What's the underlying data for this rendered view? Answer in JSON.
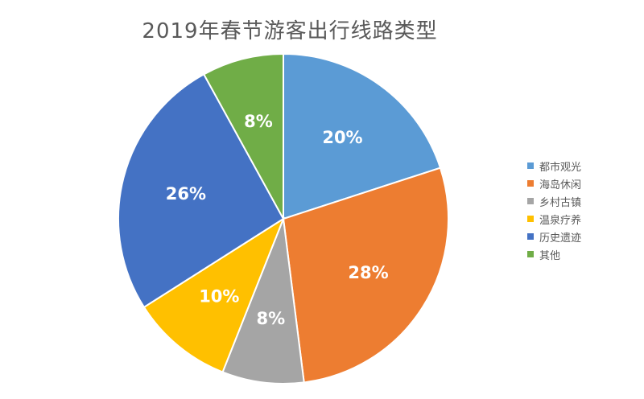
{
  "chart_data": {
    "type": "pie",
    "title": "2019年春节游客出行线路类型",
    "categories": [
      "都市观光",
      "海岛休闲",
      "乡村古镇",
      "温泉疗养",
      "历史遗迹",
      "其他"
    ],
    "values": [
      20,
      28,
      8,
      10,
      26,
      8
    ],
    "value_labels": [
      "20%",
      "28%",
      "8%",
      "10%",
      "26%",
      "8%"
    ],
    "colors": [
      "#5B9BD5",
      "#ED7D31",
      "#A5A5A5",
      "#FFC000",
      "#4472C4",
      "#70AD47"
    ],
    "legend_position": "right"
  }
}
